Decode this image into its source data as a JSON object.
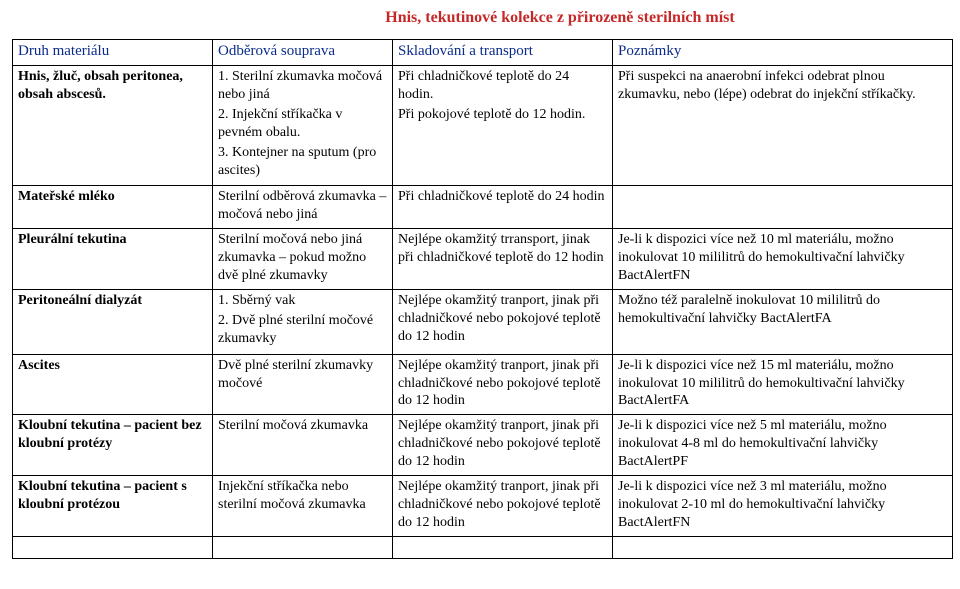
{
  "title": "Hnis,   tekutinové kolekce z přirozeně sterilních míst",
  "headers": {
    "c0": "Druh materiálu",
    "c1": "Odběrová souprava",
    "c2": "Skladování a transport",
    "c3": "Poznámky"
  },
  "rows": [
    {
      "c0": "Hnis, žluč, obsah peritonea, obsah abscesů.",
      "c0_bold": true,
      "c1": "1. Sterilní zkumavka močová nebo jiná\n2. Injekční stříkačka v pevném obalu.\n3. Kontejner na sputum (pro ascites)",
      "c2": "Při chladničkové teplotě do 24 hodin.\nPři pokojové teplotě do 12 hodin.",
      "c3": "Při suspekci na anaerobní infekci   odebrat plnou zkumavku, nebo (lépe) odebrat do  injekční stříkačky."
    },
    {
      "c0": "Mateřské mléko",
      "c0_bold": true,
      "c1": "Sterilní odběrová zkumavka – močová nebo jiná",
      "c2": "Při chladničkové teplotě do  24 hodin",
      "c3": ""
    },
    {
      "c0": "Pleurální tekutina",
      "c0_bold": true,
      "c1": "Sterilní močová nebo jiná zkumavka –  pokud možno dvě plné zkumavky",
      "c2": "Nejlépe okamžitý trransport, jinak při chladničkové teplotě do 12 hodin",
      "c3": " Je-li k dispozici více než 10 ml materiálu, možno inokulovat 10 mililitrů do hemokultivační lahvičky BactAlertFN"
    },
    {
      "c0": "Peritoneální dialyzát",
      "c0_bold": true,
      "c1": "1. Sběrný vak\n2. Dvě plné sterilní močové zkumavky",
      "c2": "Nejlépe okamžitý tranport, jinak při chladničkové nebo pokojové teplotě do 12 hodin",
      "c3": "Možno též paralelně inokulovat 10 mililitrů do hemokultivační lahvičky BactAlertFA"
    },
    {
      "c0": "Ascites",
      "c0_bold": true,
      "c1": "Dvě plné sterilní zkumavky močové",
      "c2": "Nejlépe okamžitý tranport, jinak při chladničkové nebo pokojové teplotě do 12 hodin",
      "c3": "Je-li k dispozici více než 15 ml materiálu, možno inokulovat 10 mililitrů do hemokultivační lahvičky BactAlertFA"
    },
    {
      "c0": "Kloubní tekutina – pacient bez kloubní protézy",
      "c0_bold": true,
      "c1": "Sterilní močová zkumavka",
      "c2": "Nejlépe okamžitý tranport, jinak při chladničkové nebo pokojové teplotě do 12 hodin",
      "c3": "Je-li k dispozici více než 5 ml materiálu, možno inokulovat 4-8 ml do hemokultivační lahvičky BactAlertPF"
    },
    {
      "c0": "Kloubní tekutina – pacient s kloubní protézou",
      "c0_bold": true,
      "c1": "Injekční stříkačka nebo sterilní močová zkumavka",
      "c2": "Nejlépe okamžitý tranport, jinak při chladničkové nebo pokojové teplotě do 12 hodin",
      "c3": "Je-li k dispozici více než 3 ml materiálu, možno inokulovat 2-10 ml do hemokultivační lahvičky BactAlertFN"
    }
  ],
  "colors": {
    "title": "#c62828",
    "header": "#0a2b8a",
    "border": "#000000",
    "bg": "#ffffff"
  },
  "fonts": {
    "family": "Times New Roman",
    "title_size": 16,
    "header_size": 15,
    "body_size": 14
  }
}
